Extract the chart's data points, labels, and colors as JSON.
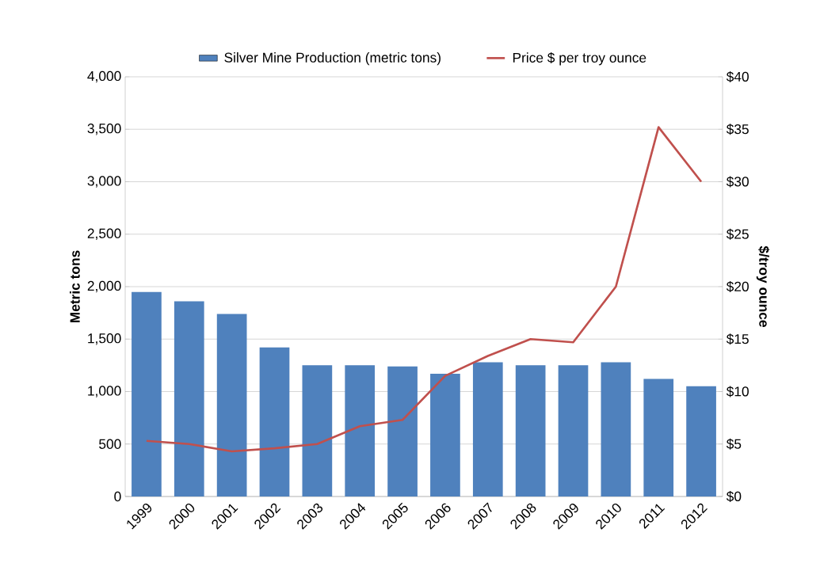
{
  "chart_data": {
    "type": "bar",
    "categories": [
      "1999",
      "2000",
      "2001",
      "2002",
      "2003",
      "2004",
      "2005",
      "2006",
      "2007",
      "2008",
      "2009",
      "2010",
      "2011",
      "2012"
    ],
    "series": [
      {
        "name": "Silver Mine Production (metric tons)",
        "color": "#4f81bd",
        "values": [
          1950,
          1860,
          1740,
          1420,
          1250,
          1250,
          1240,
          1170,
          1280,
          1250,
          1250,
          1280,
          1120,
          1050
        ]
      },
      {
        "name": "Price $ per troy ounce",
        "type": "line",
        "axis": "y2",
        "color": "#c0504d",
        "values": [
          5.3,
          5.0,
          4.3,
          4.6,
          5.0,
          6.7,
          7.3,
          11.5,
          13.4,
          15.0,
          14.7,
          20.0,
          35.2,
          30.0
        ]
      }
    ],
    "ylabel": "Metric tons",
    "y2label": "$/troy ounce",
    "ylim": [
      0,
      4000
    ],
    "yticks": [
      0,
      500,
      {
        "value": 1000,
        "label": "1,000"
      },
      {
        "value": 1500,
        "label": "1,500"
      },
      {
        "value": 2000,
        "label": "2,000"
      },
      {
        "value": 2500,
        "label": "2,500"
      },
      {
        "value": 3000,
        "label": "3,000"
      },
      {
        "value": 3500,
        "label": "3,500"
      },
      {
        "value": 4000,
        "label": "4,000"
      }
    ],
    "y2lim": [
      0,
      40
    ],
    "y2ticks": [
      {
        "value": 0,
        "label": "$0"
      },
      {
        "value": 5,
        "label": "$5"
      },
      {
        "value": 10,
        "label": "$10"
      },
      {
        "value": 15,
        "label": "$15"
      },
      {
        "value": 20,
        "label": "$20"
      },
      {
        "value": 25,
        "label": "$25"
      },
      {
        "value": 30,
        "label": "$30"
      },
      {
        "value": 35,
        "label": "$35"
      },
      {
        "value": 40,
        "label": "$40"
      }
    ],
    "grid": "y",
    "legend": "top"
  }
}
